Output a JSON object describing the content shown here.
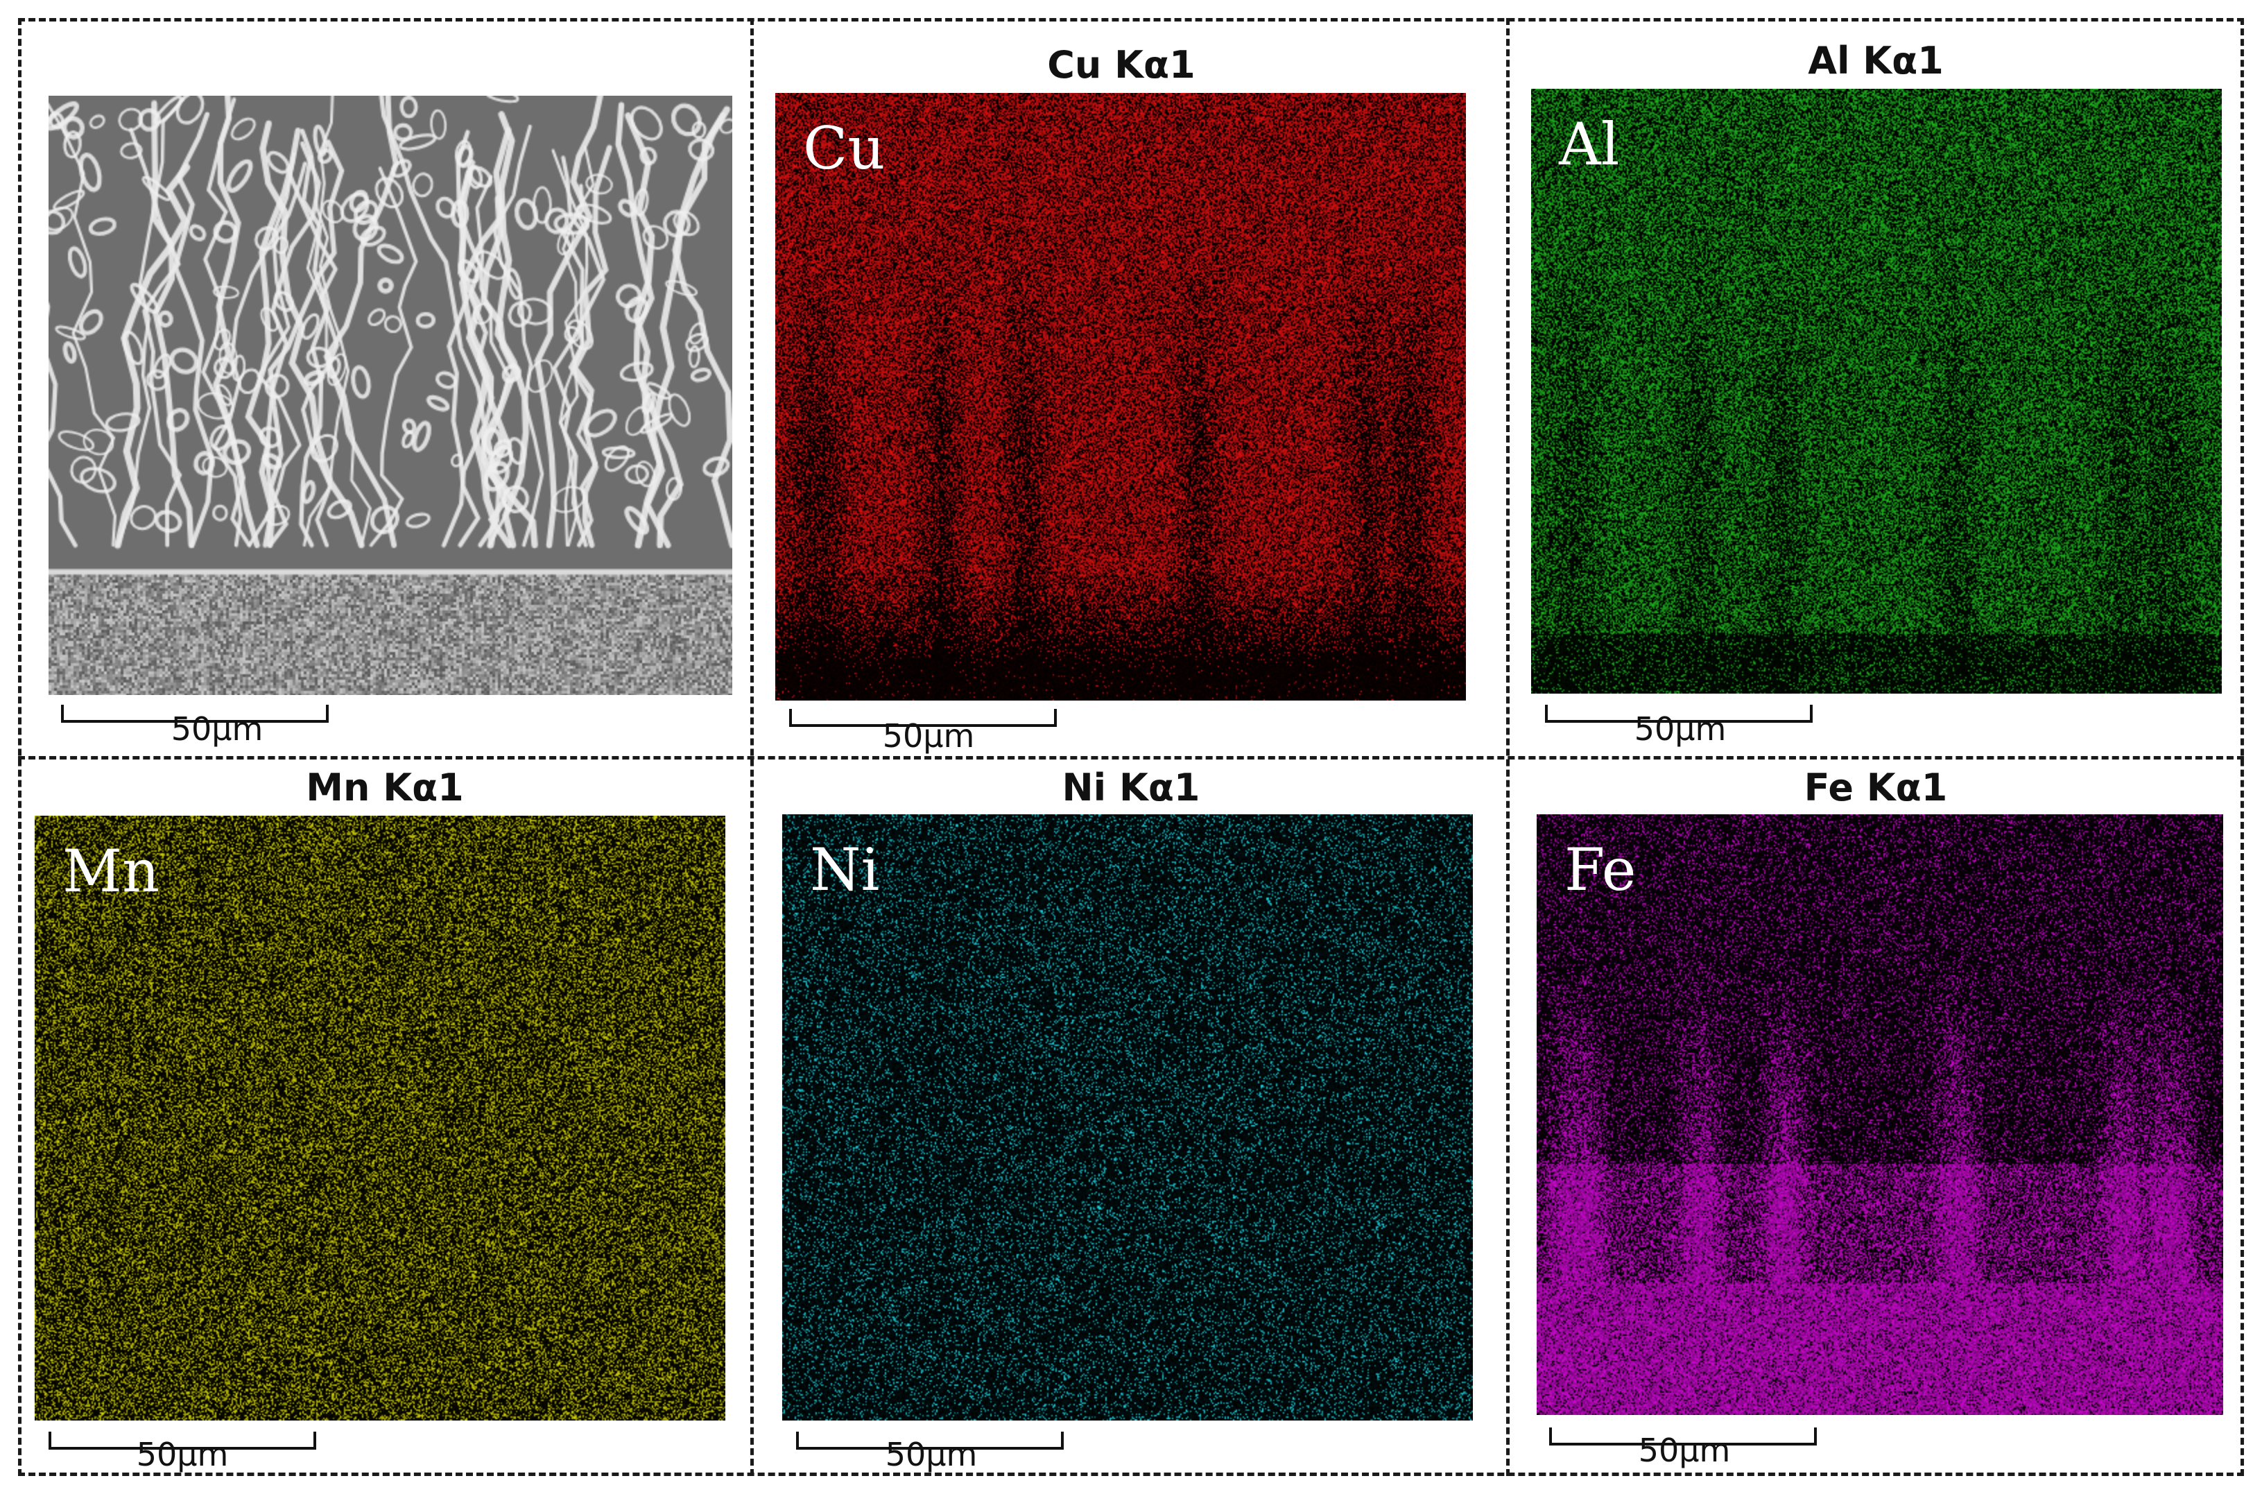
{
  "panels": [
    {
      "id": "sem",
      "title": "",
      "label": "",
      "scale": "50μm",
      "color": "#9a9a9a"
    },
    {
      "id": "cu",
      "title": "Cu Kα1",
      "label": "Cu",
      "scale": "50μm",
      "color": "#e01010"
    },
    {
      "id": "al",
      "title": "Al Kα1",
      "label": "Al",
      "scale": "50μm",
      "color": "#1fb81f"
    },
    {
      "id": "mn",
      "title": "Mn Kα1",
      "label": "Mn",
      "scale": "50μm",
      "color": "#d4d40a"
    },
    {
      "id": "ni",
      "title": "Ni Kα1",
      "label": "Ni",
      "scale": "50μm",
      "color": "#1ed6e6"
    },
    {
      "id": "fe",
      "title": "Fe Kα1",
      "label": "Fe",
      "scale": "50μm",
      "color": "#cc0ad0"
    }
  ]
}
